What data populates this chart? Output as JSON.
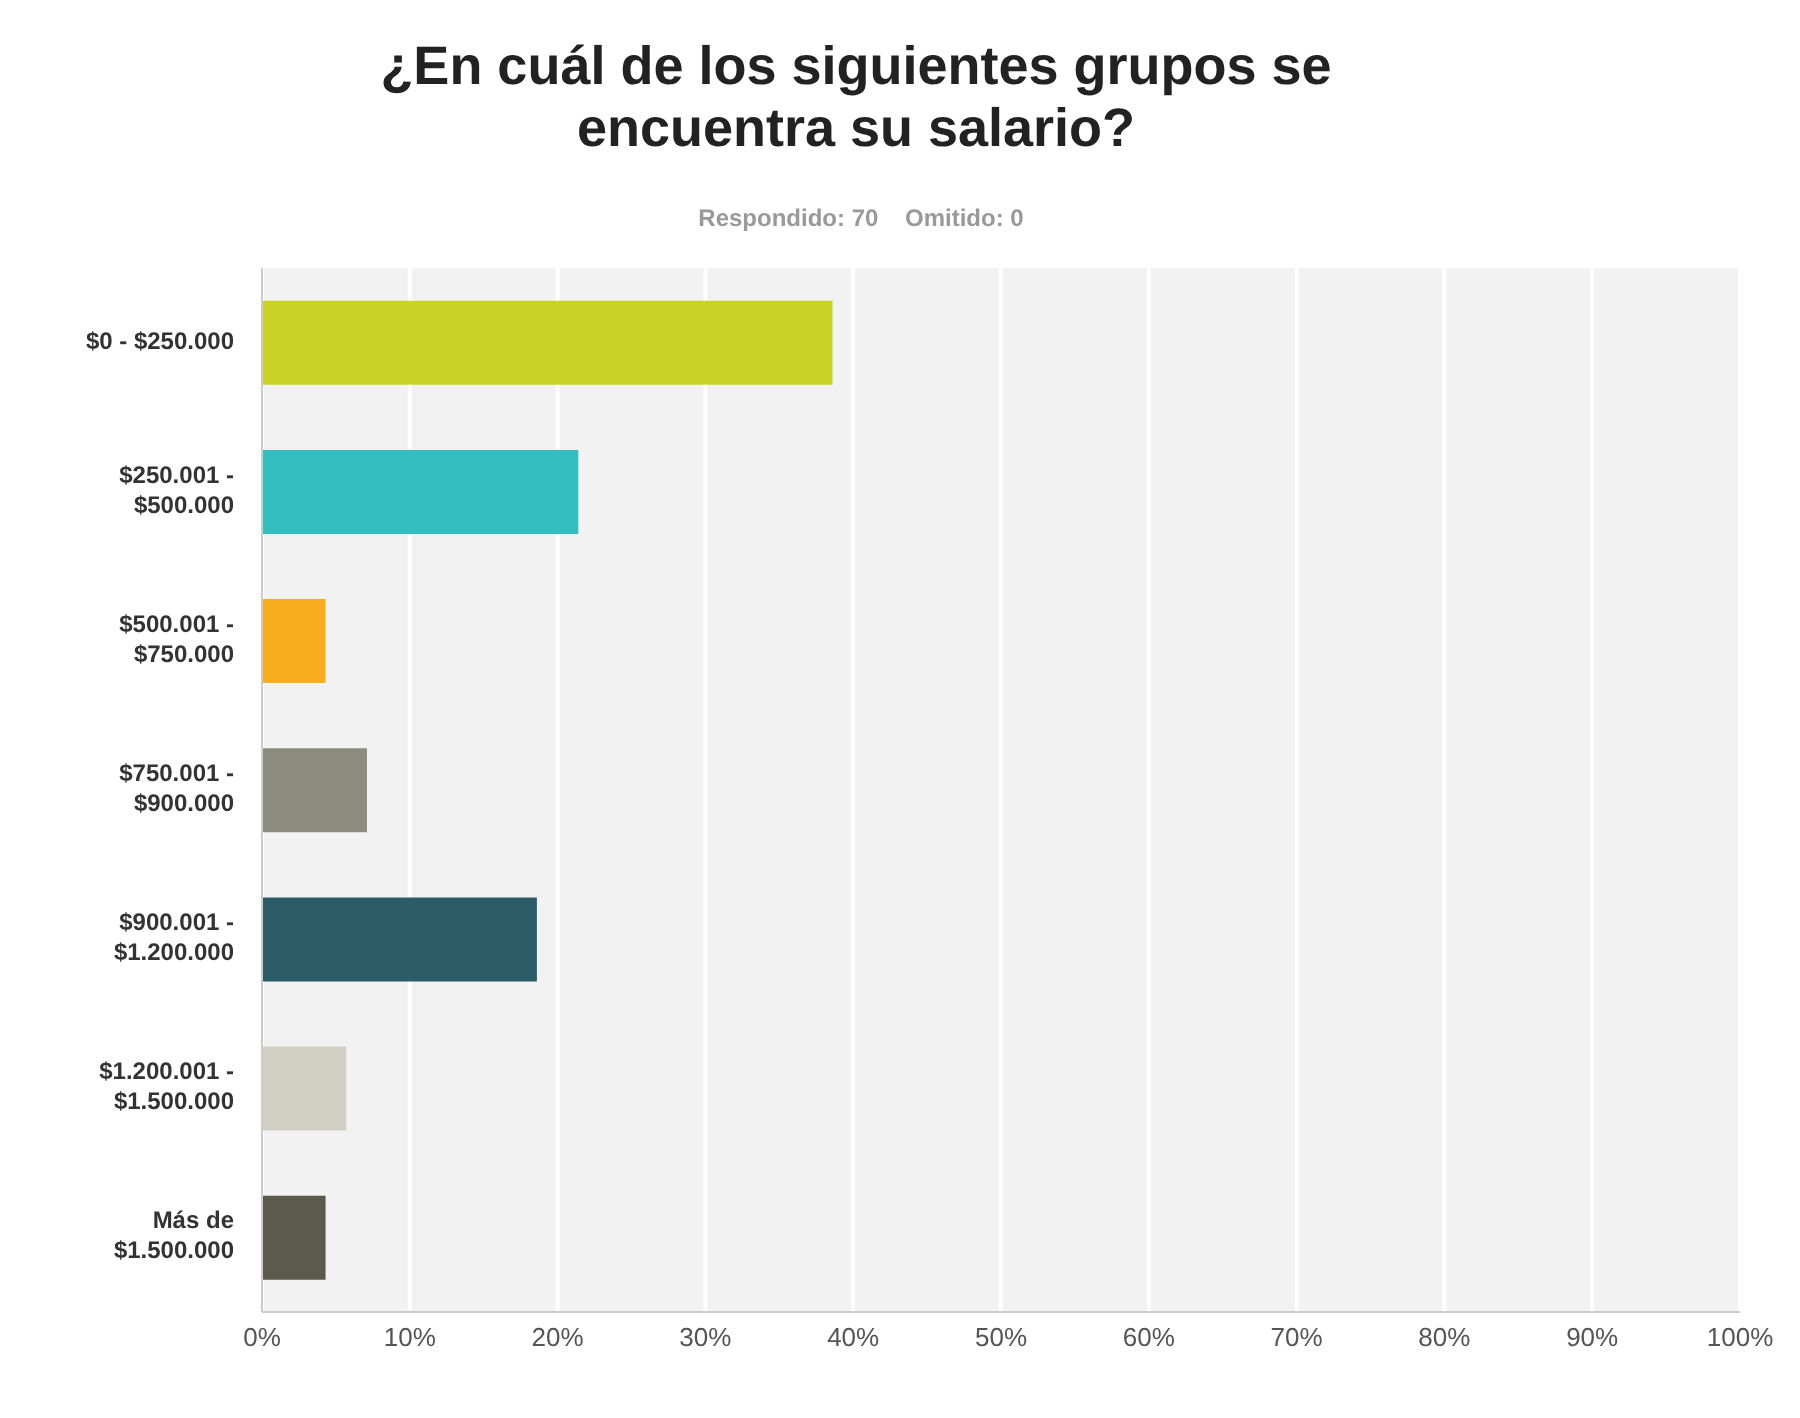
{
  "chart_data": {
    "type": "bar",
    "orientation": "horizontal",
    "title": "¿En cuál de los siguientes grupos se encuentra su salario?",
    "subtitle": "Respondido: 70    Omitido: 0",
    "categories": [
      "$0 - $250.000",
      "$250.001 - $500.000",
      "$500.001 - $750.000",
      "$750.001 - $900.000",
      "$900.001 - $1.200.000",
      "$1.200.001 - $1.500.000",
      "Más de $1.500.000"
    ],
    "values": [
      38.6,
      21.4,
      4.3,
      7.1,
      18.6,
      5.7,
      4.3
    ],
    "colors": [
      "#cad325",
      "#33bec2",
      "#f7ae1e",
      "#8b8c7d",
      "#2c5c68",
      "#d1d0c3",
      "#5b5a4b"
    ],
    "xlim": [
      0,
      100
    ],
    "xticks": [
      {
        "value": 0,
        "label": "0%"
      },
      {
        "value": 10,
        "label": "10%"
      },
      {
        "value": 20,
        "label": "20%"
      },
      {
        "value": 30,
        "label": "30%"
      },
      {
        "value": 40,
        "label": "40%"
      },
      {
        "value": 50,
        "label": "50%"
      },
      {
        "value": 60,
        "label": "60%"
      },
      {
        "value": 70,
        "label": "70%"
      },
      {
        "value": 80,
        "label": "80%"
      },
      {
        "value": 90,
        "label": "90%"
      },
      {
        "value": 100,
        "label": "100%"
      }
    ],
    "grid": "x",
    "legend": false
  }
}
